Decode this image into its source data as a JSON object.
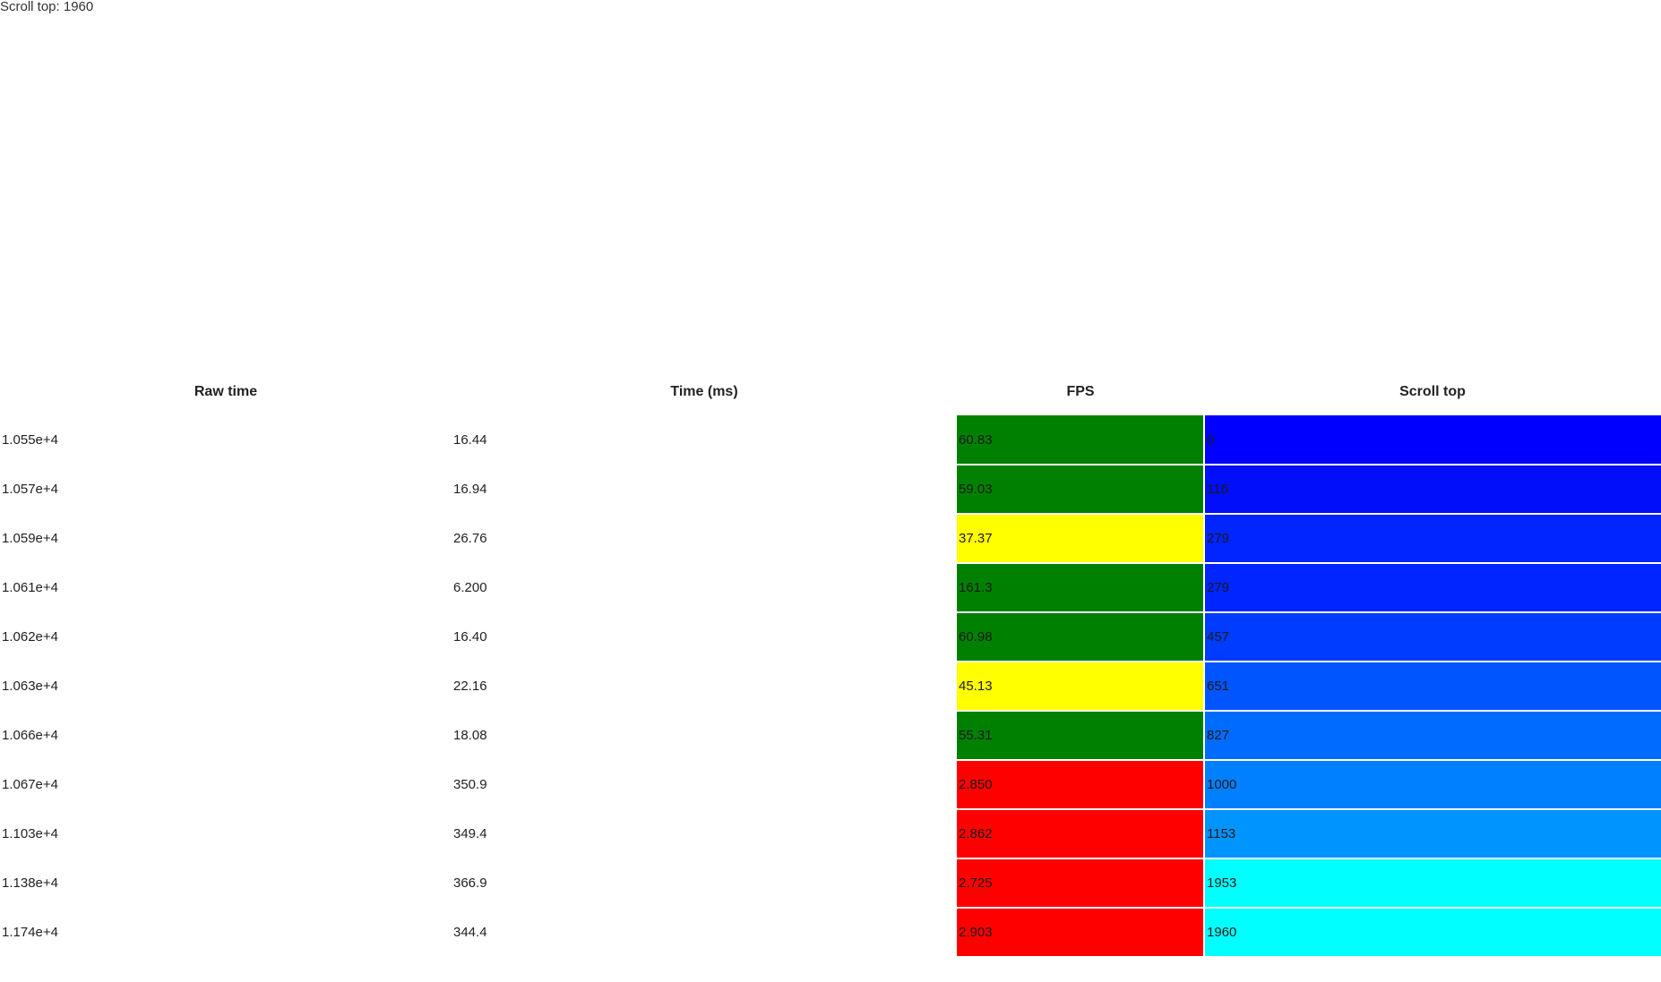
{
  "status": {
    "label": "Scroll top: 1960"
  },
  "table": {
    "headers": [
      "Raw time",
      "Time (ms)",
      "FPS",
      "Scroll top"
    ],
    "rows": [
      {
        "raw": "1.055e+4",
        "time": "16.44",
        "fps": "60.83",
        "scroll": "0",
        "fps_color": "#008000",
        "scroll_color": "#0000ff"
      },
      {
        "raw": "1.057e+4",
        "time": "16.94",
        "fps": "59.03",
        "scroll": "116",
        "fps_color": "#008000",
        "scroll_color": "#000ef9"
      },
      {
        "raw": "1.059e+4",
        "time": "26.76",
        "fps": "37.37",
        "scroll": "279",
        "fps_color": "#ffff00",
        "scroll_color": "#0025ff"
      },
      {
        "raw": "1.061e+4",
        "time": "6.200",
        "fps": "161.3",
        "scroll": "279",
        "fps_color": "#008000",
        "scroll_color": "#0025ff"
      },
      {
        "raw": "1.062e+4",
        "time": "16.40",
        "fps": "60.98",
        "scroll": "457",
        "fps_color": "#008000",
        "scroll_color": "#003cff"
      },
      {
        "raw": "1.063e+4",
        "time": "22.16",
        "fps": "45.13",
        "scroll": "651",
        "fps_color": "#ffff00",
        "scroll_color": "#0055ff"
      },
      {
        "raw": "1.066e+4",
        "time": "18.08",
        "fps": "55.31",
        "scroll": "827",
        "fps_color": "#008000",
        "scroll_color": "#006bff"
      },
      {
        "raw": "1.067e+4",
        "time": "350.9",
        "fps": "2.850",
        "scroll": "1000",
        "fps_color": "#ff0000",
        "scroll_color": "#0080ff"
      },
      {
        "raw": "1.103e+4",
        "time": "349.4",
        "fps": "2.862",
        "scroll": "1153",
        "fps_color": "#ff0000",
        "scroll_color": "#0094ff"
      },
      {
        "raw": "1.138e+4",
        "time": "366.9",
        "fps": "2.725",
        "scroll": "1953",
        "fps_color": "#ff0000",
        "scroll_color": "#00ffff"
      },
      {
        "raw": "1.174e+4",
        "time": "344.4",
        "fps": "2.903",
        "scroll": "1960",
        "fps_color": "#ff0000",
        "scroll_color": "#00ffff"
      }
    ]
  }
}
